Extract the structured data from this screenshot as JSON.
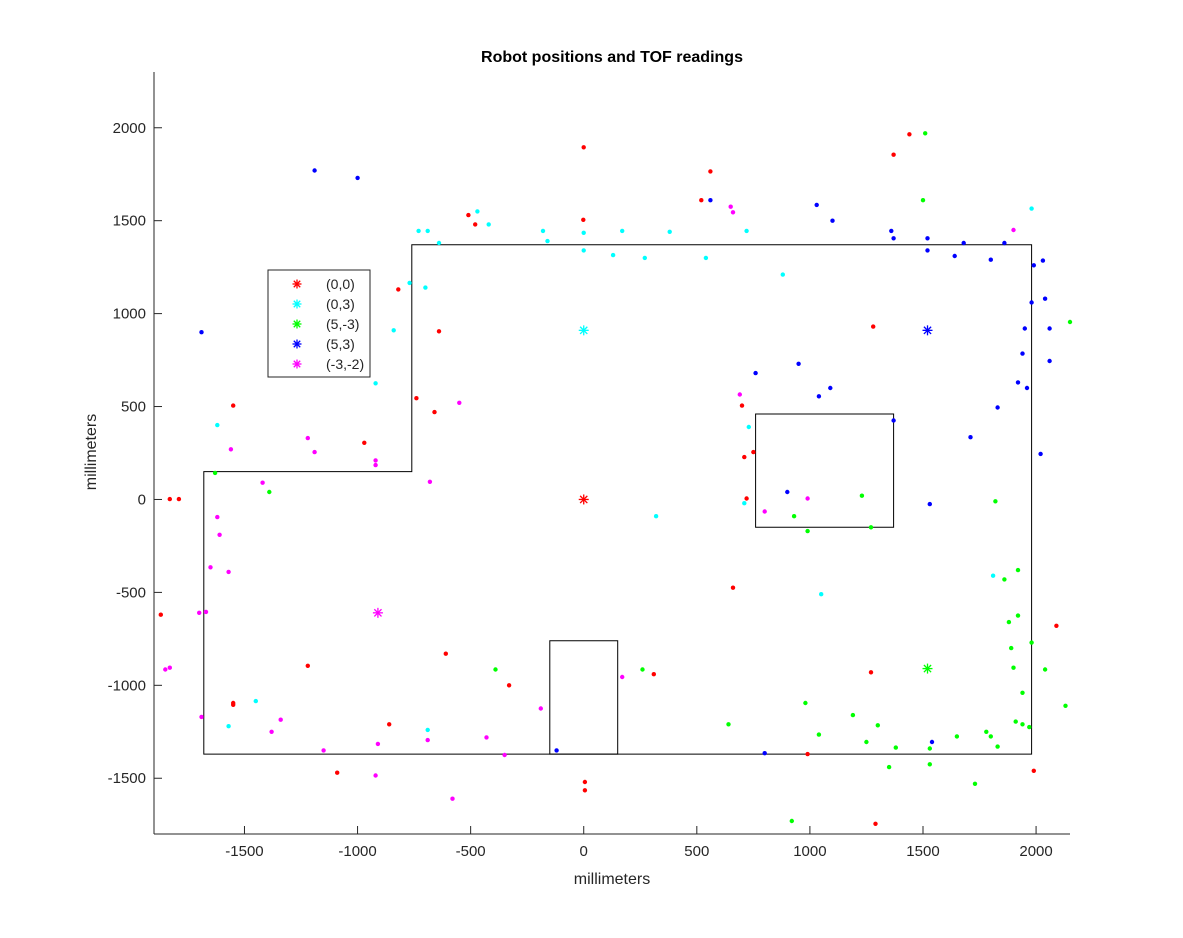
{
  "chart_data": {
    "type": "scatter",
    "title": "Robot positions and TOF readings",
    "xlabel": "millimeters",
    "ylabel": "millimeters",
    "xlim": [
      -1900,
      2150
    ],
    "ylim": [
      -1800,
      2300
    ],
    "xticks": [
      -1500,
      -1000,
      -500,
      0,
      500,
      1000,
      1500,
      2000
    ],
    "yticks": [
      -1500,
      -1000,
      -500,
      0,
      500,
      1000,
      1500,
      2000
    ],
    "grid": false,
    "legend_position": "upper-left",
    "series": [
      {
        "name": "(0,0)",
        "color": "#ff0000",
        "marker_position": [
          0,
          0
        ],
        "points": [
          [
            -1830,
            2
          ],
          [
            -1790,
            2
          ],
          [
            -1870,
            -620
          ],
          [
            -1550,
            505
          ],
          [
            -1550,
            -1095
          ],
          [
            -1550,
            -1105
          ],
          [
            -1220,
            -895
          ],
          [
            -1090,
            -1470
          ],
          [
            -970,
            305
          ],
          [
            -860,
            -1210
          ],
          [
            -820,
            1130
          ],
          [
            -740,
            545
          ],
          [
            -660,
            470
          ],
          [
            -640,
            905
          ],
          [
            -610,
            -830
          ],
          [
            -510,
            1530
          ],
          [
            -480,
            1480
          ],
          [
            -330,
            -1000
          ],
          [
            -2,
            1505
          ],
          [
            0,
            1895
          ],
          [
            5,
            -1520
          ],
          [
            5,
            -1565
          ],
          [
            310,
            -940
          ],
          [
            520,
            1610
          ],
          [
            560,
            1765
          ],
          [
            660,
            -475
          ],
          [
            700,
            505
          ],
          [
            710,
            228
          ],
          [
            720,
            5
          ],
          [
            750,
            255
          ],
          [
            990,
            -1370
          ],
          [
            1270,
            -930
          ],
          [
            1280,
            930
          ],
          [
            1290,
            -1745
          ],
          [
            1370,
            1855
          ],
          [
            1440,
            1965
          ],
          [
            1990,
            -1460
          ],
          [
            2090,
            -680
          ]
        ]
      },
      {
        "name": "(0,3)",
        "color": "#00ffff",
        "marker_position": [
          0,
          910
        ],
        "points": [
          [
            -1620,
            400
          ],
          [
            -1570,
            -1220
          ],
          [
            -1450,
            -1085
          ],
          [
            -920,
            625
          ],
          [
            -840,
            910
          ],
          [
            -770,
            1165
          ],
          [
            -730,
            1445
          ],
          [
            -700,
            1140
          ],
          [
            -690,
            1445
          ],
          [
            -690,
            -1240
          ],
          [
            -640,
            1380
          ],
          [
            -470,
            1550
          ],
          [
            -420,
            1480
          ],
          [
            -180,
            1445
          ],
          [
            -160,
            1390
          ],
          [
            0,
            1340
          ],
          [
            0,
            1435
          ],
          [
            130,
            1315
          ],
          [
            170,
            1445
          ],
          [
            270,
            1300
          ],
          [
            320,
            -90
          ],
          [
            380,
            1440
          ],
          [
            540,
            1300
          ],
          [
            710,
            -20
          ],
          [
            720,
            1445
          ],
          [
            730,
            390
          ],
          [
            880,
            1210
          ],
          [
            1050,
            -510
          ],
          [
            1810,
            -410
          ],
          [
            1980,
            1565
          ]
        ]
      },
      {
        "name": "(5,-3)",
        "color": "#00ff00",
        "marker_position": [
          1520,
          -910
        ],
        "points": [
          [
            -1630,
            143
          ],
          [
            -1390,
            40
          ],
          [
            -390,
            -915
          ],
          [
            260,
            -915
          ],
          [
            640,
            -1210
          ],
          [
            920,
            -1730
          ],
          [
            930,
            -90
          ],
          [
            980,
            -1095
          ],
          [
            990,
            -170
          ],
          [
            1040,
            -1265
          ],
          [
            1190,
            -1160
          ],
          [
            1230,
            20
          ],
          [
            1250,
            -1305
          ],
          [
            1270,
            -150
          ],
          [
            1300,
            -1215
          ],
          [
            1350,
            -1440
          ],
          [
            1380,
            -1335
          ],
          [
            1500,
            1610
          ],
          [
            1510,
            1970
          ],
          [
            1530,
            -1340
          ],
          [
            1530,
            -1425
          ],
          [
            1650,
            -1275
          ],
          [
            1730,
            -1530
          ],
          [
            1780,
            -1250
          ],
          [
            1800,
            -1275
          ],
          [
            1820,
            -10
          ],
          [
            1830,
            -1330
          ],
          [
            1860,
            -430
          ],
          [
            1880,
            -660
          ],
          [
            1890,
            -800
          ],
          [
            1900,
            -905
          ],
          [
            1910,
            -1195
          ],
          [
            1920,
            -380
          ],
          [
            1920,
            -625
          ],
          [
            1940,
            -1210
          ],
          [
            1940,
            -1040
          ],
          [
            1970,
            -1225
          ],
          [
            1980,
            -770
          ],
          [
            2040,
            -915
          ],
          [
            2130,
            -1110
          ],
          [
            2150,
            955
          ]
        ]
      },
      {
        "name": "(5,3)",
        "color": "#0000ff",
        "marker_position": [
          1520,
          910
        ],
        "points": [
          [
            -1690,
            900
          ],
          [
            -1190,
            1770
          ],
          [
            -1000,
            1730
          ],
          [
            -120,
            -1350
          ],
          [
            560,
            1610
          ],
          [
            760,
            680
          ],
          [
            800,
            -1365
          ],
          [
            900,
            40
          ],
          [
            950,
            730
          ],
          [
            1030,
            1585
          ],
          [
            1040,
            555
          ],
          [
            1090,
            600
          ],
          [
            1100,
            1500
          ],
          [
            1360,
            1445
          ],
          [
            1370,
            1405
          ],
          [
            1370,
            425
          ],
          [
            1520,
            1405
          ],
          [
            1520,
            1340
          ],
          [
            1530,
            -25
          ],
          [
            1540,
            -1305
          ],
          [
            1640,
            1310
          ],
          [
            1680,
            1380
          ],
          [
            1710,
            335
          ],
          [
            1800,
            1290
          ],
          [
            1830,
            495
          ],
          [
            1860,
            1380
          ],
          [
            1920,
            630
          ],
          [
            1940,
            785
          ],
          [
            1950,
            920
          ],
          [
            1960,
            600
          ],
          [
            1980,
            1060
          ],
          [
            1990,
            1260
          ],
          [
            2020,
            245
          ],
          [
            2030,
            1285
          ],
          [
            2040,
            1080
          ],
          [
            2060,
            920
          ],
          [
            2060,
            745
          ]
        ]
      },
      {
        "name": "(-3,-2)",
        "color": "#ff00ff",
        "marker_position": [
          -910,
          -610
        ],
        "points": [
          [
            -1850,
            -915
          ],
          [
            -1830,
            -905
          ],
          [
            -1700,
            -610
          ],
          [
            -1690,
            -1170
          ],
          [
            -1670,
            -605
          ],
          [
            -1650,
            -365
          ],
          [
            -1620,
            -95
          ],
          [
            -1610,
            -190
          ],
          [
            -1570,
            -390
          ],
          [
            -1560,
            270
          ],
          [
            -1420,
            90
          ],
          [
            -1380,
            -1250
          ],
          [
            -1340,
            -1185
          ],
          [
            -1220,
            330
          ],
          [
            -1190,
            255
          ],
          [
            -1150,
            -1350
          ],
          [
            -920,
            210
          ],
          [
            -920,
            185
          ],
          [
            -920,
            -1485
          ],
          [
            -910,
            -1315
          ],
          [
            -690,
            -1295
          ],
          [
            -680,
            95
          ],
          [
            -580,
            -1610
          ],
          [
            -550,
            520
          ],
          [
            -430,
            -1280
          ],
          [
            -350,
            -1375
          ],
          [
            -190,
            -1125
          ],
          [
            170,
            -955
          ],
          [
            650,
            1575
          ],
          [
            660,
            1545
          ],
          [
            690,
            565
          ],
          [
            800,
            -65
          ],
          [
            990,
            5
          ],
          [
            1900,
            1450
          ]
        ]
      }
    ],
    "map_outline": {
      "outer_polygon": [
        [
          -1680,
          150
        ],
        [
          -760,
          150
        ],
        [
          -760,
          1370
        ],
        [
          1980,
          1370
        ],
        [
          1980,
          -1370
        ],
        [
          -1680,
          -1370
        ]
      ],
      "obstacles": [
        [
          [
            760,
            460
          ],
          [
            1370,
            460
          ],
          [
            1370,
            -150
          ],
          [
            760,
            -150
          ]
        ],
        [
          [
            -150,
            -760
          ],
          [
            150,
            -760
          ],
          [
            150,
            -1370
          ],
          [
            -150,
            -1370
          ]
        ]
      ]
    }
  }
}
